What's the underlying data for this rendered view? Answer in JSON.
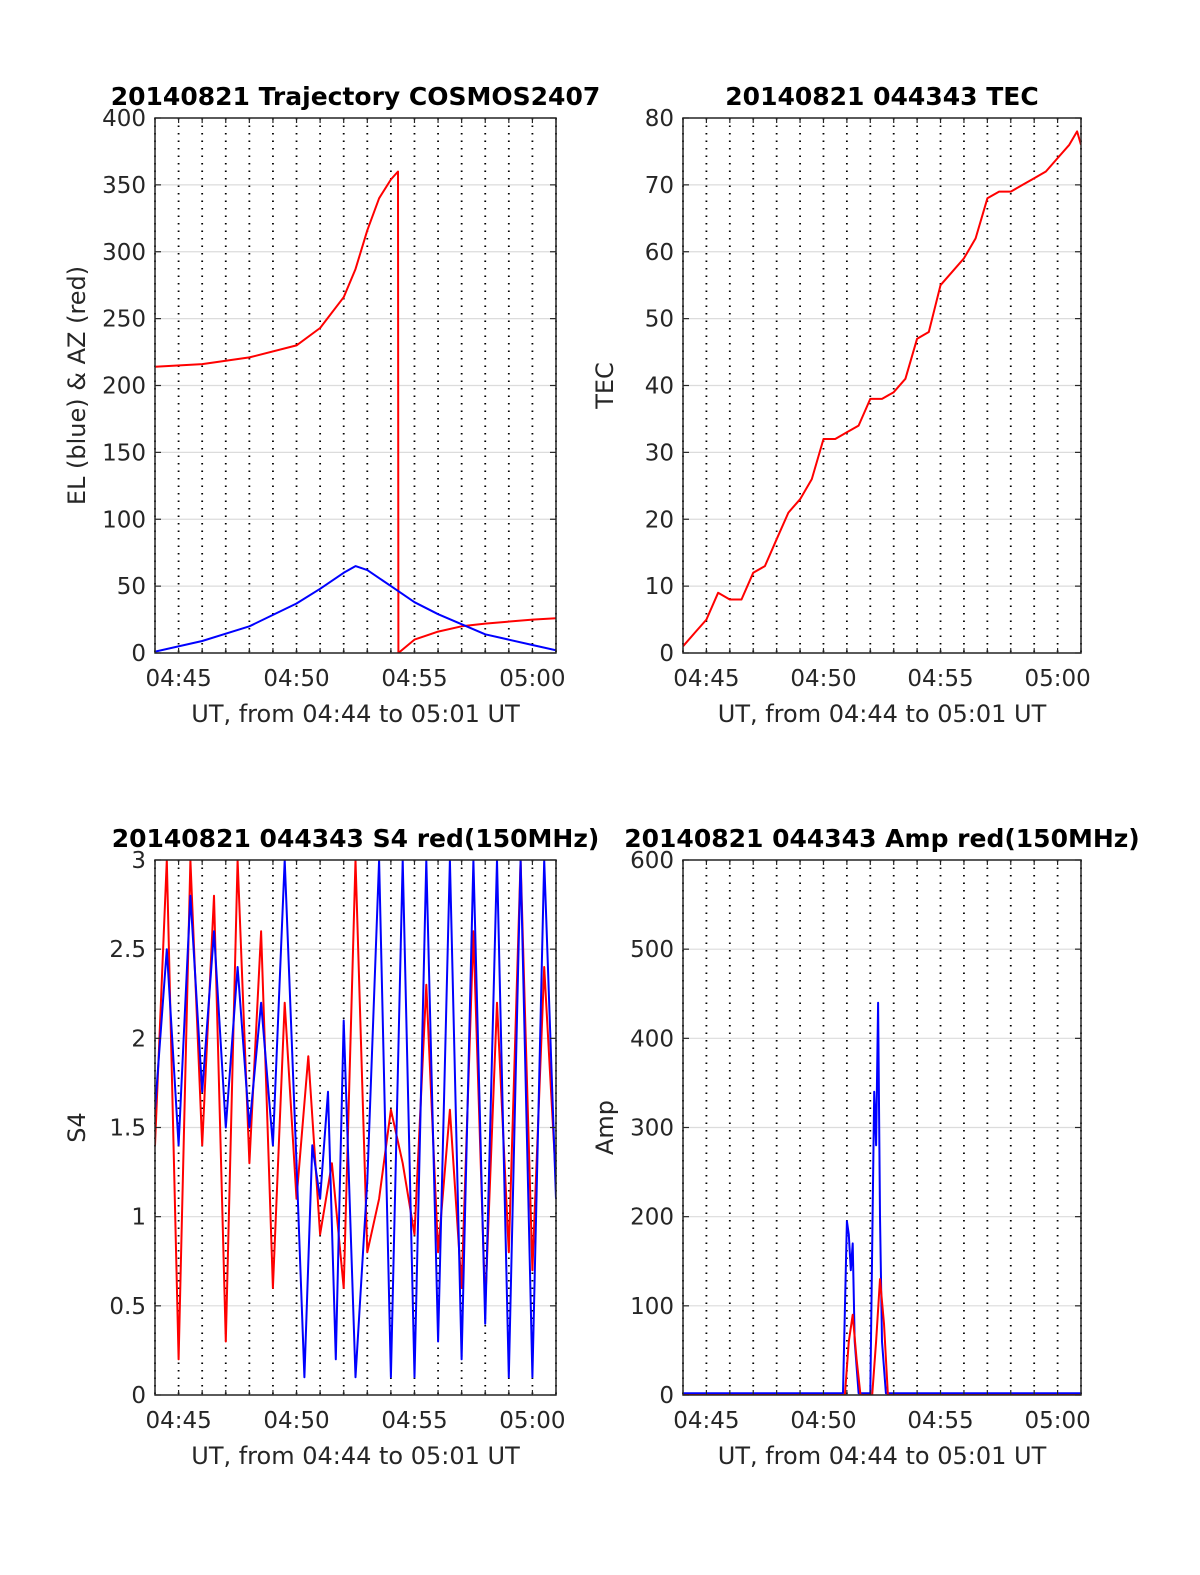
{
  "chart_data": [
    {
      "id": "trajectory",
      "type": "line",
      "title": "20140821 Trajectory COSMOS2407",
      "xlabel": "UT, from 04:44 to 05:01 UT",
      "ylabel": "EL (blue) & AZ (red)",
      "xlim": [
        "04:44",
        "05:01"
      ],
      "ylim": [
        0,
        400
      ],
      "x_ticks": [
        "04:45",
        "04:50",
        "04:55",
        "05:00"
      ],
      "y_ticks": [
        0,
        50,
        100,
        150,
        200,
        250,
        300,
        350,
        400
      ],
      "grid": true,
      "colors": {
        "EL": "#0000ff",
        "AZ": "#ff0000"
      },
      "series": [
        {
          "color": "#ff0000",
          "x": [
            "04:44",
            "04:46",
            "04:48",
            "04:50",
            "04:51",
            "04:52",
            "04:52:30",
            "04:53",
            "04:53:30",
            "04:54",
            "04:54:18",
            "04:54:19",
            "04:55",
            "04:56",
            "04:57",
            "04:58",
            "05:00",
            "05:01"
          ],
          "y": [
            214,
            216,
            221,
            230,
            243,
            266,
            287,
            316,
            340,
            354,
            360,
            0,
            10,
            16,
            20,
            22,
            25,
            26
          ]
        },
        {
          "color": "#0000ff",
          "x": [
            "04:44",
            "04:46",
            "04:48",
            "04:50",
            "04:51",
            "04:52",
            "04:52:30",
            "04:53",
            "04:54",
            "04:55",
            "04:56",
            "04:58",
            "05:00",
            "05:01"
          ],
          "y": [
            1,
            9,
            20,
            37,
            48,
            60,
            65,
            62,
            50,
            38,
            29,
            14,
            6,
            2
          ]
        }
      ]
    },
    {
      "id": "tec",
      "type": "line",
      "title": "20140821 044343 TEC",
      "xlabel": "UT, from 04:44 to 05:01 UT",
      "ylabel": "TEC",
      "xlim": [
        "04:44",
        "05:01"
      ],
      "ylim": [
        0,
        80
      ],
      "x_ticks": [
        "04:45",
        "04:50",
        "04:55",
        "05:00"
      ],
      "y_ticks": [
        0,
        10,
        20,
        30,
        40,
        50,
        60,
        70,
        80
      ],
      "grid": true,
      "series": [
        {
          "color": "#ff0000",
          "x": [
            "04:44",
            "04:44:30",
            "04:45",
            "04:45:30",
            "04:46",
            "04:46:30",
            "04:47",
            "04:47:30",
            "04:48",
            "04:48:30",
            "04:49",
            "04:49:30",
            "04:50",
            "04:50:30",
            "04:51",
            "04:51:30",
            "04:52",
            "04:52:30",
            "04:53",
            "04:53:30",
            "04:54",
            "04:54:30",
            "04:55",
            "04:55:30",
            "04:56",
            "04:56:30",
            "04:57",
            "04:57:30",
            "04:58",
            "04:58:30",
            "04:59",
            "04:59:30",
            "05:00",
            "05:00:30",
            "05:00:50",
            "05:01"
          ],
          "y": [
            1,
            3,
            5,
            9,
            8,
            8,
            12,
            13,
            17,
            21,
            23,
            26,
            32,
            32,
            33,
            34,
            38,
            38,
            39,
            41,
            47,
            48,
            55,
            57,
            59,
            62,
            68,
            69,
            69,
            70,
            71,
            72,
            74,
            76,
            78,
            76
          ]
        }
      ]
    },
    {
      "id": "s4",
      "type": "line",
      "title": "20140821 044343 S4 red(150MHz)",
      "xlabel": "UT, from 04:44 to 05:01 UT",
      "ylabel": "S4",
      "xlim": [
        "04:44",
        "05:01"
      ],
      "ylim": [
        0,
        3
      ],
      "x_ticks": [
        "04:45",
        "04:50",
        "04:55",
        "05:00"
      ],
      "y_ticks": [
        0,
        0.5,
        1,
        1.5,
        2,
        2.5,
        3
      ],
      "grid": true,
      "series": [
        {
          "color": "#ff0000",
          "x": [
            "04:44",
            "04:44:30",
            "04:45",
            "04:45:30",
            "04:46",
            "04:46:30",
            "04:47",
            "04:47:30",
            "04:48",
            "04:48:30",
            "04:49",
            "04:49:30",
            "04:50",
            "04:50:30",
            "04:51",
            "04:51:30",
            "04:52",
            "04:52:30",
            "04:53",
            "04:53:30",
            "04:54",
            "04:54:30",
            "04:55",
            "04:55:30",
            "04:56",
            "04:56:30",
            "04:57",
            "04:57:30",
            "04:58",
            "04:58:30",
            "04:59",
            "04:59:30",
            "05:00",
            "05:00:30",
            "05:01"
          ],
          "y": [
            1.4,
            3,
            0.2,
            3,
            1.4,
            2.8,
            0.3,
            3,
            1.3,
            2.6,
            0.6,
            2.2,
            1.1,
            1.9,
            0.9,
            1.3,
            0.6,
            3,
            0.8,
            1.1,
            1.6,
            1.3,
            0.9,
            2.3,
            0.8,
            1.6,
            0.6,
            2.6,
            0.5,
            2.2,
            0.8,
            3,
            0.7,
            2.4,
            1.2
          ]
        },
        {
          "color": "#0000ff",
          "x": [
            "04:44",
            "04:44:30",
            "04:45",
            "04:45:30",
            "04:46",
            "04:46:30",
            "04:47",
            "04:47:30",
            "04:48",
            "04:48:30",
            "04:49",
            "04:49:30",
            "04:50",
            "04:50:20",
            "04:50:40",
            "04:51",
            "04:51:20",
            "04:51:40",
            "04:52",
            "04:52:30",
            "04:53",
            "04:53:30",
            "04:54",
            "04:54:30",
            "04:55",
            "04:55:30",
            "04:56",
            "04:56:30",
            "04:57",
            "04:57:30",
            "04:58",
            "04:58:30",
            "04:59",
            "04:59:30",
            "05:00",
            "05:00:30",
            "05:01"
          ],
          "y": [
            1.6,
            2.5,
            1.4,
            2.8,
            1.7,
            2.6,
            1.5,
            2.4,
            1.5,
            2.2,
            1.4,
            3,
            1.3,
            0.1,
            1.4,
            1.1,
            1.7,
            0.2,
            2.1,
            0.1,
            1.2,
            3,
            0.1,
            3,
            0.1,
            3,
            0.3,
            3,
            0.2,
            3,
            0.4,
            3,
            0.1,
            3,
            0.1,
            3,
            1.1
          ]
        }
      ]
    },
    {
      "id": "amp",
      "type": "line",
      "title": "20140821 044343 Amp red(150MHz)",
      "xlabel": "UT, from 04:44 to 05:01 UT",
      "ylabel": "Amp",
      "xlim": [
        "04:44",
        "05:01"
      ],
      "ylim": [
        0,
        600
      ],
      "x_ticks": [
        "04:45",
        "04:50",
        "04:55",
        "05:00"
      ],
      "y_ticks": [
        0,
        100,
        200,
        300,
        400,
        500,
        600
      ],
      "grid": true,
      "series": [
        {
          "color": "#0000ff",
          "x": [
            "04:44",
            "04:50:50",
            "04:51:00",
            "04:51:05",
            "04:51:10",
            "04:51:15",
            "04:51:20",
            "04:51:30",
            "04:52:00",
            "04:52:10",
            "04:52:15",
            "04:52:20",
            "04:52:25",
            "04:52:30",
            "04:52:40",
            "05:01"
          ],
          "y": [
            2,
            2,
            195,
            180,
            140,
            170,
            60,
            2,
            2,
            340,
            280,
            440,
            200,
            60,
            2,
            2
          ]
        },
        {
          "color": "#ff0000",
          "x": [
            "04:44",
            "04:50:55",
            "04:51:05",
            "04:51:15",
            "04:51:25",
            "04:51:35",
            "04:52:05",
            "04:52:15",
            "04:52:25",
            "04:52:35",
            "04:52:45",
            "05:01"
          ],
          "y": [
            0,
            0,
            60,
            90,
            40,
            0,
            0,
            60,
            130,
            80,
            0,
            0
          ]
        }
      ]
    }
  ]
}
